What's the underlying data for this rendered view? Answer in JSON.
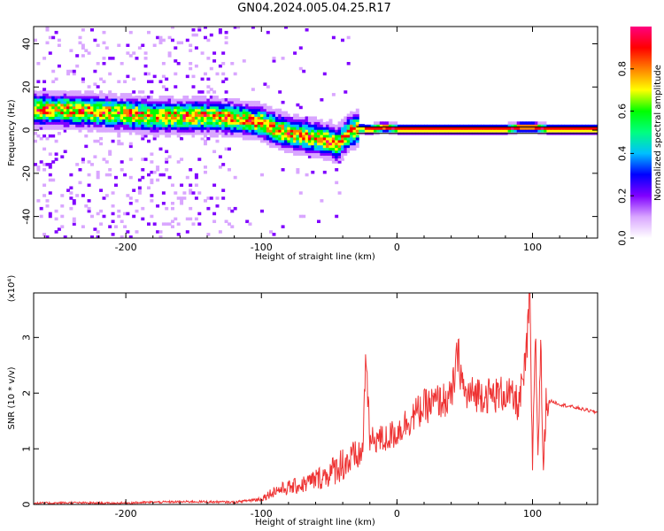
{
  "title": "GN04.2024.005.04.25.R17",
  "chart_data": [
    {
      "type": "heatmap",
      "xlabel": "Height of straight line (km)",
      "ylabel": "Frequency (Hz)",
      "xlim": [
        -268,
        148
      ],
      "ylim": [
        -50,
        48
      ],
      "xticks": [
        -200,
        -100,
        0,
        100
      ],
      "xtick_labels": [
        "-200",
        "-100",
        "0",
        "100"
      ],
      "yticks": [
        -40,
        -20,
        0,
        20,
        40
      ],
      "ytick_labels": [
        "-40",
        "-20",
        "0",
        "20",
        "40"
      ],
      "ridge": {
        "x": [
          -268,
          -250,
          -220,
          -200,
          -180,
          -160,
          -140,
          -120,
          -110,
          -100,
          -90,
          -80,
          -70,
          -60,
          -50,
          -45,
          -40,
          -35,
          -30,
          -20,
          -10,
          0,
          20,
          50,
          80,
          90,
          100,
          110,
          120,
          148
        ],
        "freq": [
          9,
          9,
          8,
          7,
          6,
          6,
          6,
          5,
          4,
          3,
          0,
          -2,
          -3,
          -4,
          -6,
          -7,
          -4,
          -1,
          0,
          0,
          1,
          0,
          0,
          0,
          0,
          1,
          1,
          0,
          0,
          0
        ]
      },
      "colorbar": {
        "label": "Normalized spectral amplitude",
        "range": [
          0,
          1
        ],
        "ticks": [
          0.0,
          0.2,
          0.4,
          0.6,
          0.8
        ],
        "tick_labels": [
          "0.0",
          "0.2",
          "0.4",
          "0.6",
          "0.8"
        ],
        "colors": [
          "#ffffff",
          "#d9a6ff",
          "#8000ff",
          "#0000ff",
          "#00bfff",
          "#00ff80",
          "#00ff00",
          "#ffff00",
          "#ff8000",
          "#ff0000",
          "#ff0080"
        ]
      }
    },
    {
      "type": "line",
      "xlabel": "Height of straight line (km)",
      "ylabel": "SNR (10 * v/v)",
      "y_multiplier": "(x10⁴)",
      "xlim": [
        -268,
        148
      ],
      "ylim": [
        0,
        3.8
      ],
      "xticks": [
        -200,
        -100,
        0,
        100
      ],
      "xtick_labels": [
        "-200",
        "-100",
        "0",
        "100"
      ],
      "yticks": [
        0,
        1,
        2,
        3
      ],
      "ytick_labels": [
        "0",
        "1",
        "2",
        "3"
      ],
      "series": [
        {
          "color": "#ee3333",
          "x": [
            -268,
            -240,
            -210,
            -180,
            -150,
            -120,
            -100,
            -90,
            -80,
            -70,
            -60,
            -50,
            -40,
            -30,
            -25,
            -23,
            -20,
            -15,
            -10,
            0,
            10,
            20,
            30,
            40,
            45,
            50,
            60,
            70,
            80,
            90,
            95,
            98,
            100,
            102,
            104,
            106,
            108,
            110,
            115,
            120,
            130,
            148
          ],
          "y": [
            0.02,
            0.03,
            0.02,
            0.04,
            0.05,
            0.04,
            0.1,
            0.25,
            0.3,
            0.35,
            0.45,
            0.55,
            0.75,
            0.8,
            1.0,
            2.8,
            1.1,
            1.2,
            1.15,
            1.3,
            1.55,
            1.75,
            1.85,
            1.9,
            2.7,
            1.95,
            2.0,
            1.95,
            2.0,
            1.8,
            2.5,
            3.8,
            0.5,
            3.2,
            0.9,
            2.9,
            0.6,
            1.85,
            1.85,
            1.8,
            1.75,
            1.65
          ]
        }
      ]
    }
  ]
}
